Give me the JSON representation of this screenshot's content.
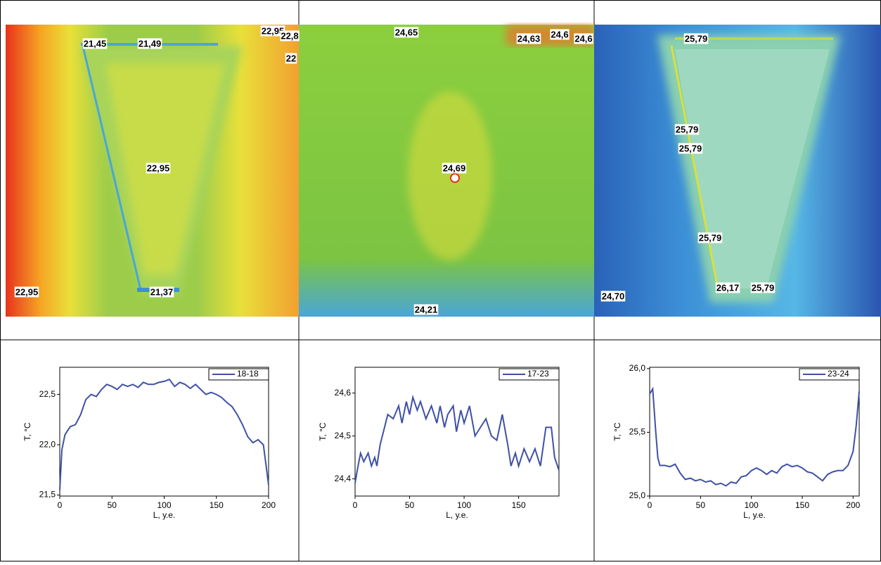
{
  "images": [
    {
      "labels": [
        "21,45",
        "21,49",
        "22,95",
        "22,8",
        "22",
        "22,95",
        "22,95",
        "21,37"
      ]
    },
    {
      "labels": [
        "24,65",
        "24,63",
        "24,6",
        "24,6",
        "24,69",
        "24,21"
      ]
    },
    {
      "labels": [
        "25,79",
        "25,79",
        "25,79",
        "25,79",
        "26,17",
        "25,79",
        "24,70"
      ]
    }
  ],
  "chart_data": [
    {
      "type": "line",
      "xlabel": "L, у.е.",
      "ylabel": "T, °C",
      "x": [
        0,
        2,
        5,
        10,
        15,
        20,
        25,
        30,
        35,
        40,
        45,
        50,
        55,
        60,
        65,
        70,
        75,
        80,
        85,
        90,
        95,
        100,
        105,
        110,
        115,
        120,
        125,
        130,
        135,
        140,
        145,
        150,
        155,
        160,
        165,
        170,
        175,
        180,
        185,
        190,
        195,
        200
      ],
      "series": [
        {
          "name": "18-18",
          "color": "#3f51a5",
          "values": [
            21.55,
            21.95,
            22.1,
            22.18,
            22.2,
            22.3,
            22.45,
            22.5,
            22.48,
            22.55,
            22.6,
            22.58,
            22.55,
            22.6,
            22.58,
            22.6,
            22.57,
            22.62,
            22.6,
            22.6,
            22.62,
            22.63,
            22.65,
            22.58,
            22.62,
            22.6,
            22.56,
            22.6,
            22.55,
            22.5,
            22.52,
            22.5,
            22.47,
            22.42,
            22.38,
            22.3,
            22.2,
            22.08,
            22.02,
            22.05,
            22.0,
            21.6
          ]
        }
      ],
      "xlim": [
        0,
        200
      ],
      "ylim": [
        21.49,
        22.77
      ],
      "xticks": [
        0,
        50,
        100,
        150,
        200
      ],
      "yticks": [
        {
          "value": 21.5,
          "label": "21,5"
        },
        {
          "value": 22.0,
          "label": "22,0"
        },
        {
          "value": 22.5,
          "label": "22,5"
        }
      ]
    },
    {
      "type": "line",
      "xlabel": "L, у.е.",
      "ylabel": "T, °C",
      "x": [
        0,
        2,
        5,
        8,
        12,
        15,
        18,
        20,
        23,
        27,
        30,
        35,
        40,
        43,
        47,
        50,
        53,
        57,
        60,
        65,
        70,
        75,
        78,
        82,
        85,
        90,
        93,
        97,
        100,
        105,
        110,
        115,
        120,
        125,
        130,
        135,
        140,
        143,
        147,
        150,
        155,
        160,
        165,
        170,
        175,
        180,
        183,
        187
      ],
      "series": [
        {
          "name": "17-23",
          "color": "#3f51a5",
          "values": [
            24.39,
            24.42,
            24.46,
            24.44,
            24.46,
            24.43,
            24.45,
            24.43,
            24.48,
            24.52,
            24.55,
            24.54,
            24.57,
            24.53,
            24.58,
            24.55,
            24.59,
            24.56,
            24.58,
            24.54,
            24.57,
            24.53,
            24.57,
            24.52,
            24.55,
            24.57,
            24.51,
            24.56,
            24.53,
            24.57,
            24.5,
            24.52,
            24.54,
            24.5,
            24.49,
            24.55,
            24.48,
            24.43,
            24.46,
            24.43,
            24.47,
            24.44,
            24.47,
            24.43,
            24.52,
            24.52,
            24.45,
            24.42
          ]
        }
      ],
      "xlim": [
        0,
        187
      ],
      "ylim": [
        24.36,
        24.66
      ],
      "xticks": [
        0,
        50,
        100,
        150
      ],
      "yticks": [
        {
          "value": 24.4,
          "label": "24,4"
        },
        {
          "value": 24.5,
          "label": "24,5"
        },
        {
          "value": 24.6,
          "label": "24,6"
        }
      ]
    },
    {
      "type": "line",
      "xlabel": "L, у.е.",
      "ylabel": "T, °C",
      "x": [
        0,
        3,
        6,
        8,
        10,
        15,
        20,
        25,
        30,
        35,
        40,
        45,
        50,
        55,
        60,
        65,
        70,
        75,
        80,
        85,
        90,
        95,
        100,
        105,
        110,
        115,
        120,
        125,
        130,
        135,
        140,
        145,
        150,
        155,
        160,
        165,
        170,
        175,
        180,
        185,
        190,
        195,
        200,
        203,
        206
      ],
      "series": [
        {
          "name": "23-24",
          "color": "#3f51a5",
          "values": [
            25.8,
            25.84,
            25.5,
            25.3,
            25.24,
            25.24,
            25.23,
            25.25,
            25.18,
            25.13,
            25.14,
            25.12,
            25.13,
            25.11,
            25.12,
            25.09,
            25.1,
            25.08,
            25.11,
            25.1,
            25.15,
            25.16,
            25.2,
            25.22,
            25.2,
            25.17,
            25.2,
            25.18,
            25.23,
            25.25,
            25.23,
            25.24,
            25.22,
            25.19,
            25.18,
            25.15,
            25.12,
            25.17,
            25.19,
            25.2,
            25.2,
            25.24,
            25.35,
            25.55,
            25.82
          ]
        }
      ],
      "xlim": [
        0,
        206
      ],
      "ylim": [
        25.0,
        26.01
      ],
      "xticks": [
        0,
        50,
        100,
        150,
        200
      ],
      "yticks": [
        {
          "value": 25.0,
          "label": "25,0"
        },
        {
          "value": 25.5,
          "label": "25,5"
        },
        {
          "value": 26.0,
          "label": "26,0"
        }
      ]
    }
  ]
}
